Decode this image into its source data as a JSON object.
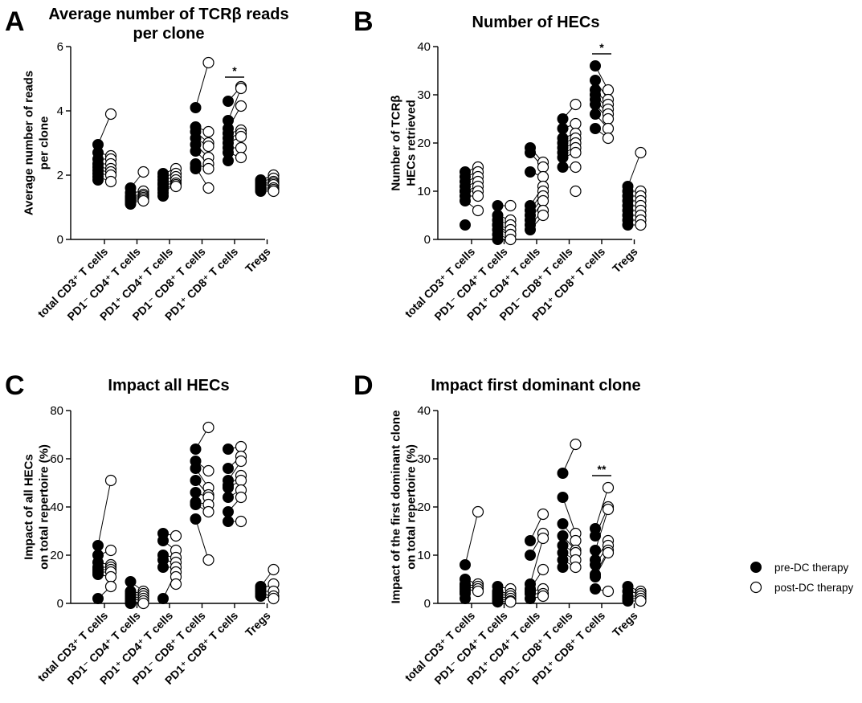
{
  "legend": [
    {
      "label": "pre-DC therapy",
      "marker": "filled-circle"
    },
    {
      "label": "post-DC therapy",
      "marker": "open-circle"
    }
  ],
  "chart_data": [
    {
      "panel": "A",
      "type": "scatter",
      "title_lines": [
        "Average number of TCRβ reads",
        "per clone"
      ],
      "ylabel_lines": [
        "Average number of reads",
        "per clone"
      ],
      "ylim": [
        0,
        6
      ],
      "yticks": [
        0,
        2,
        4,
        6
      ],
      "categories": [
        "total CD3⁺ T cells",
        "PD1⁻ CD4⁺ T cells",
        "PD1⁺ CD4⁺ T cells",
        "PD1⁻ CD8⁺ T cells",
        "PD1⁺ CD8⁺ T cells",
        "Tregs"
      ],
      "series": [
        {
          "name": "pre-DC therapy",
          "values": [
            [
              2.95,
              2.7,
              2.5,
              2.35,
              2.25,
              2.15,
              2.05,
              1.95,
              1.85
            ],
            [
              1.6,
              1.45,
              1.35,
              1.3,
              1.25,
              1.2,
              1.15,
              1.1
            ],
            [
              2.05,
              1.95,
              1.85,
              1.75,
              1.7,
              1.6,
              1.55,
              1.45,
              1.35
            ],
            [
              4.1,
              3.5,
              3.35,
              3.15,
              2.95,
              2.75,
              2.35,
              2.25,
              2.2
            ],
            [
              4.3,
              3.7,
              3.45,
              3.3,
              3.15,
              3.0,
              2.85,
              2.7,
              2.45
            ],
            [
              1.85,
              1.8,
              1.75,
              1.7,
              1.65,
              1.6,
              1.55,
              1.5
            ]
          ]
        },
        {
          "name": "post-DC therapy",
          "values": [
            [
              3.9,
              2.6,
              2.5,
              2.35,
              2.2,
              2.1,
              2.0,
              1.8
            ],
            [
              2.1,
              1.5,
              1.4,
              1.35,
              1.3,
              1.25,
              1.2
            ],
            [
              2.2,
              2.05,
              1.95,
              1.85,
              1.75,
              1.7,
              1.65
            ],
            [
              5.5,
              3.35,
              3.0,
              2.9,
              2.55,
              2.35,
              2.2,
              1.6
            ],
            [
              4.75,
              4.7,
              4.15,
              3.4,
              3.3,
              3.2,
              2.85,
              2.55
            ],
            [
              2.0,
              1.9,
              1.8,
              1.75,
              1.7,
              1.6,
              1.55,
              1.5
            ]
          ]
        }
      ],
      "significance": [
        {
          "category_index": 4,
          "label": "*",
          "y": 5.05
        }
      ]
    },
    {
      "panel": "B",
      "type": "scatter",
      "title_lines": [
        "Number of HECs"
      ],
      "ylabel_lines": [
        "Number of TCRβ",
        "HECs retrieved"
      ],
      "ylim": [
        0,
        40
      ],
      "yticks": [
        0,
        10,
        20,
        30,
        40
      ],
      "categories": [
        "total CD3⁺ T cells",
        "PD1⁻ CD4⁺ T cells",
        "PD1⁺ CD4⁺ T cells",
        "PD1⁻ CD8⁺ T cells",
        "PD1⁺ CD8⁺ T cells",
        "Tregs"
      ],
      "series": [
        {
          "name": "pre-DC therapy",
          "values": [
            [
              14,
              13,
              12,
              11,
              10,
              10,
              9,
              8,
              3
            ],
            [
              7,
              5,
              4,
              3,
              3,
              2,
              1,
              0
            ],
            [
              19,
              18,
              14,
              7,
              6,
              5,
              4,
              3,
              2
            ],
            [
              25,
              23,
              21,
              20,
              19,
              18,
              17,
              15
            ],
            [
              36,
              33,
              31,
              30,
              29,
              28,
              26,
              23
            ],
            [
              11,
              10,
              9,
              8,
              7,
              6,
              5,
              4,
              3
            ]
          ]
        },
        {
          "name": "post-DC therapy",
          "values": [
            [
              15,
              14,
              13,
              12,
              11,
              10,
              9,
              6
            ],
            [
              7,
              4,
              3,
              2,
              1,
              1,
              0
            ],
            [
              16,
              15,
              13,
              11,
              10,
              9,
              8,
              6,
              5
            ],
            [
              28,
              24,
              22,
              21,
              20,
              19,
              18,
              15,
              10
            ],
            [
              31,
              29,
              28,
              27,
              26,
              25,
              23,
              21
            ],
            [
              18,
              10,
              9,
              8,
              7,
              6,
              5,
              4,
              3
            ]
          ]
        }
      ],
      "significance": [
        {
          "category_index": 4,
          "label": "*",
          "y": 38.5
        }
      ]
    },
    {
      "panel": "C",
      "type": "scatter",
      "title_lines": [
        "Impact all HECs"
      ],
      "ylabel_lines": [
        "Impact of all HECs",
        "on total repertoire (%)"
      ],
      "ylim": [
        0,
        80
      ],
      "yticks": [
        0,
        20,
        40,
        60,
        80
      ],
      "categories": [
        "total CD3⁺ T cells",
        "PD1⁻ CD4⁺ T cells",
        "PD1⁺ CD4⁺ T cells",
        "PD1⁻ CD8⁺ T cells",
        "PD1⁺ CD8⁺ T cells",
        "Tregs"
      ],
      "series": [
        {
          "name": "pre-DC therapy",
          "values": [
            [
              24,
              20,
              17,
              15,
              14,
              13,
              12,
              2
            ],
            [
              9,
              5,
              4,
              3,
              2,
              1,
              0
            ],
            [
              29,
              26,
              20,
              18,
              15,
              2
            ],
            [
              64,
              59,
              56,
              51,
              46,
              42,
              41,
              35
            ],
            [
              64,
              56,
              51,
              49,
              48,
              44,
              38,
              34
            ],
            [
              7,
              6,
              5,
              4,
              3
            ]
          ]
        },
        {
          "name": "post-DC therapy",
          "values": [
            [
              51,
              22,
              16,
              15,
              14,
              13,
              11,
              7
            ],
            [
              5,
              4,
              3,
              2,
              1,
              0
            ],
            [
              28,
              22,
              19,
              17,
              15,
              13,
              11,
              8
            ],
            [
              73,
              55,
              48,
              45,
              44,
              41,
              38,
              18
            ],
            [
              65,
              61,
              59,
              53,
              51,
              47,
              44,
              34
            ],
            [
              14,
              8,
              5,
              3,
              2
            ]
          ]
        }
      ],
      "significance": []
    },
    {
      "panel": "D",
      "type": "scatter",
      "title_lines": [
        "Impact first dominant clone"
      ],
      "ylabel_lines": [
        "Impact of the first dominant clone",
        "on total repertoire (%)"
      ],
      "ylim": [
        0,
        40
      ],
      "yticks": [
        0,
        10,
        20,
        30,
        40
      ],
      "categories": [
        "total CD3⁺ T cells",
        "PD1⁻ CD4⁺ T cells",
        "PD1⁺ CD4⁺ T cells",
        "PD1⁻ CD8⁺ T cells",
        "PD1⁺ CD8⁺ T cells",
        "Tregs"
      ],
      "series": [
        {
          "name": "pre-DC therapy",
          "values": [
            [
              8,
              5,
              4,
              3.5,
              3,
              2.5,
              2,
              1
            ],
            [
              3.5,
              2.5,
              2,
              1.5,
              1,
              0.5,
              0.3
            ],
            [
              13,
              10,
              4,
              3,
              2.5,
              2,
              1
            ],
            [
              27,
              22,
              16.5,
              14,
              12,
              10.5,
              9,
              7.5
            ],
            [
              15.5,
              14,
              11,
              9,
              8,
              6,
              5.5,
              3
            ],
            [
              3.5,
              2.5,
              1.5,
              1,
              0.5
            ]
          ]
        },
        {
          "name": "post-DC therapy",
          "values": [
            [
              19,
              4,
              3.5,
              3,
              2.5
            ],
            [
              3,
              2,
              1.5,
              1,
              0.5,
              0.3
            ],
            [
              18.5,
              14.5,
              13.5,
              7,
              3,
              2,
              1.5
            ],
            [
              33,
              14.5,
              13,
              11,
              10.5,
              9,
              7.5
            ],
            [
              24,
              20,
              19.5,
              13,
              12,
              11,
              10.5,
              2.5
            ],
            [
              2.5,
              2,
              1.5,
              1,
              0.5
            ]
          ]
        }
      ],
      "significance": [
        {
          "category_index": 4,
          "label": "**",
          "y": 26.5
        }
      ]
    }
  ]
}
